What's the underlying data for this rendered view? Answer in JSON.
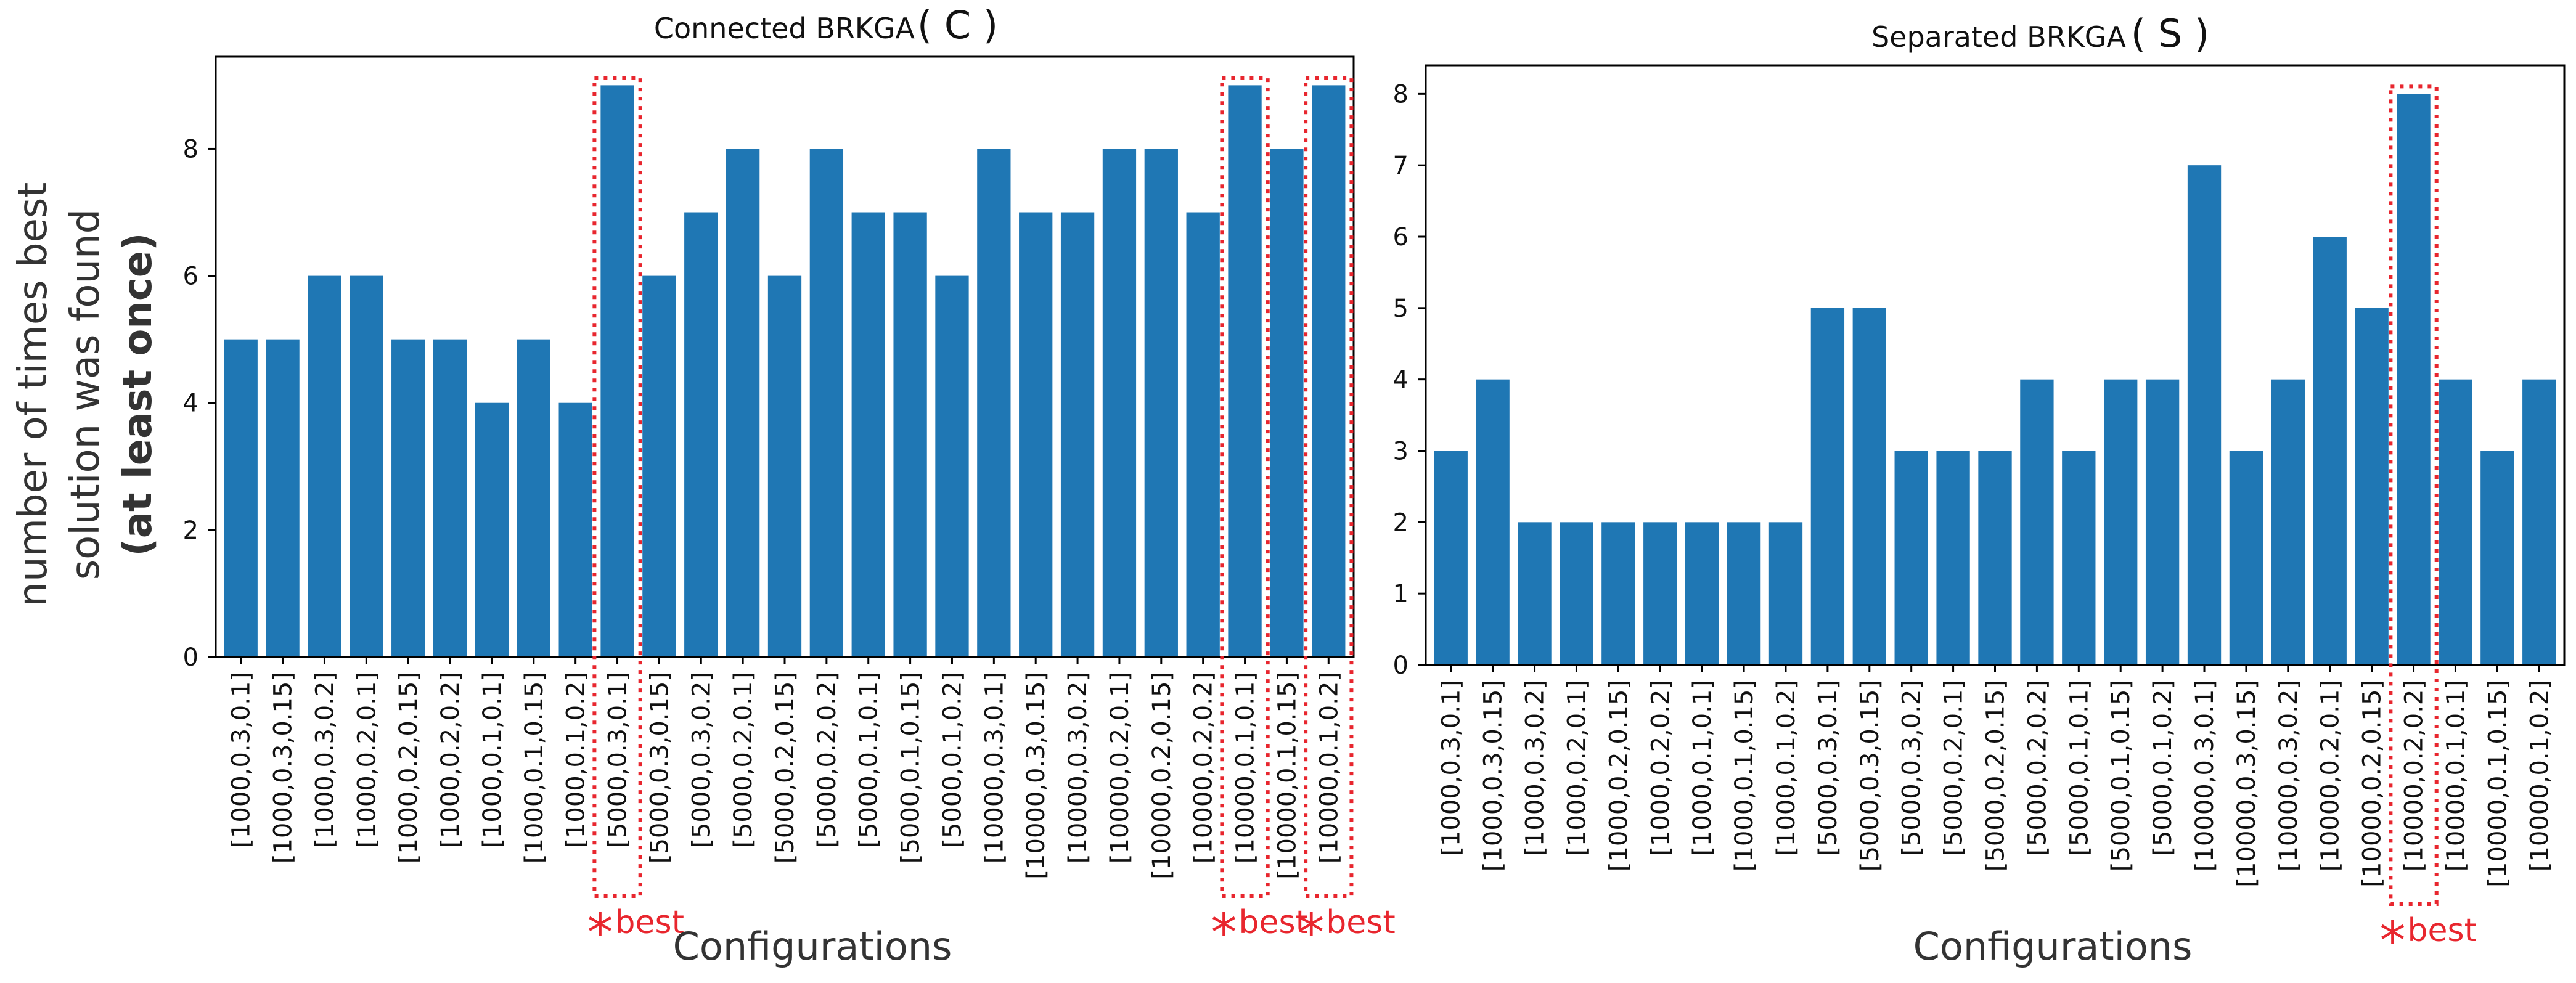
{
  "shared": {
    "ylabel_line1": "number of times best",
    "ylabel_line2": "solution was found",
    "ylabel_line3": "(at least once)",
    "best_star": "*",
    "best_label": "best",
    "bar_color": "#1f77b4",
    "highlight_color": "#e8262e"
  },
  "chart_data": [
    {
      "type": "bar",
      "title": "Connected BRKGA",
      "title_symbol": "C",
      "xlabel": "Configurations",
      "ylim": [
        0,
        9.45
      ],
      "yticks": [
        0,
        2,
        4,
        6,
        8
      ],
      "categories": [
        "[1000,0.3,0.1]",
        "[1000,0.3,0.15]",
        "[1000,0.3,0.2]",
        "[1000,0.2,0.1]",
        "[1000,0.2,0.15]",
        "[1000,0.2,0.2]",
        "[1000,0.1,0.1]",
        "[1000,0.1,0.15]",
        "[1000,0.1,0.2]",
        "[5000,0.3,0.1]",
        "[5000,0.3,0.15]",
        "[5000,0.3,0.2]",
        "[5000,0.2,0.1]",
        "[5000,0.2,0.15]",
        "[5000,0.2,0.2]",
        "[5000,0.1,0.1]",
        "[5000,0.1,0.15]",
        "[5000,0.1,0.2]",
        "[10000,0.3,0.1]",
        "[10000,0.3,0.15]",
        "[10000,0.3,0.2]",
        "[10000,0.2,0.1]",
        "[10000,0.2,0.15]",
        "[10000,0.2,0.2]",
        "[10000,0.1,0.1]",
        "[10000,0.1,0.15]",
        "[10000,0.1,0.2]"
      ],
      "values": [
        5,
        5,
        6,
        6,
        5,
        5,
        4,
        5,
        4,
        9,
        6,
        7,
        8,
        6,
        8,
        7,
        7,
        6,
        8,
        7,
        7,
        8,
        8,
        7,
        9,
        8,
        9
      ],
      "best": [
        "[5000,0.3,0.1]",
        "[10000,0.1,0.1]",
        "[10000,0.1,0.2]"
      ]
    },
    {
      "type": "bar",
      "title": "Separated BRKGA",
      "title_symbol": "S",
      "xlabel": "Configurations",
      "ylim": [
        0,
        8.4
      ],
      "yticks": [
        0,
        1,
        2,
        3,
        4,
        5,
        6,
        7,
        8
      ],
      "categories": [
        "[1000,0.3,0.1]",
        "[1000,0.3,0.15]",
        "[1000,0.3,0.2]",
        "[1000,0.2,0.1]",
        "[1000,0.2,0.15]",
        "[1000,0.2,0.2]",
        "[1000,0.1,0.1]",
        "[1000,0.1,0.15]",
        "[1000,0.1,0.2]",
        "[5000,0.3,0.1]",
        "[5000,0.3,0.15]",
        "[5000,0.3,0.2]",
        "[5000,0.2,0.1]",
        "[5000,0.2,0.15]",
        "[5000,0.2,0.2]",
        "[5000,0.1,0.1]",
        "[5000,0.1,0.15]",
        "[5000,0.1,0.2]",
        "[10000,0.3,0.1]",
        "[10000,0.3,0.15]",
        "[10000,0.3,0.2]",
        "[10000,0.2,0.1]",
        "[10000,0.2,0.15]",
        "[10000,0.2,0.2]",
        "[10000,0.1,0.1]",
        "[10000,0.1,0.15]",
        "[10000,0.1,0.2]"
      ],
      "values": [
        3,
        4,
        2,
        2,
        2,
        2,
        2,
        2,
        2,
        5,
        5,
        3,
        3,
        3,
        4,
        3,
        4,
        4,
        7,
        3,
        4,
        6,
        5,
        8,
        4,
        3,
        4
      ],
      "best": [
        "[10000,0.2,0.2]"
      ]
    }
  ]
}
